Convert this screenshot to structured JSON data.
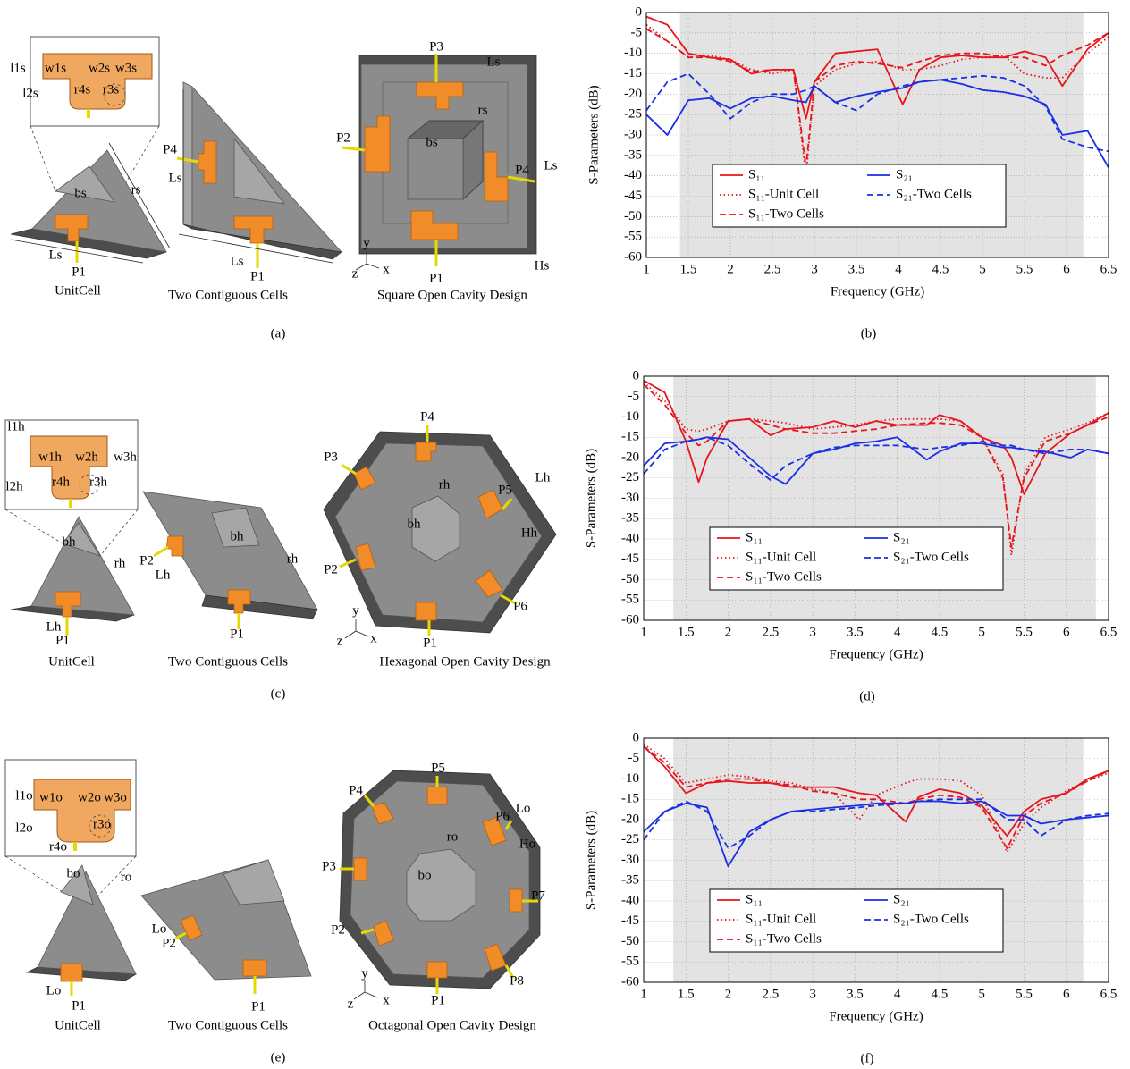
{
  "chart_data": [
    {
      "type": "line",
      "panel_label": "(b)",
      "xlabel": "Frequency (GHz)",
      "ylabel": "S-Parameters (dB)",
      "xlim": [
        1,
        6.5
      ],
      "ylim": [
        -60,
        0
      ],
      "xticks": [
        1,
        1.5,
        2,
        2.5,
        3,
        3.5,
        4,
        4.5,
        5,
        5.5,
        6,
        6.5
      ],
      "yticks": [
        0,
        -5,
        -10,
        -15,
        -20,
        -25,
        -30,
        -35,
        -40,
        -45,
        -50,
        -55,
        -60
      ],
      "grid": true,
      "legend_loc": "lower center",
      "shade": [
        1.4,
        6.2
      ],
      "shade_color": "#e3e3e3",
      "x": [
        1,
        1.25,
        1.5,
        1.75,
        2,
        2.25,
        2.5,
        2.75,
        2.9,
        3,
        3.25,
        3.5,
        3.75,
        4.05,
        4.25,
        4.5,
        4.75,
        5,
        5.25,
        5.5,
        5.75,
        5.95,
        6.25,
        6.5
      ],
      "series": [
        {
          "name": "S₁₁",
          "color": "#e8141b",
          "style": "solid",
          "values": [
            -1,
            -3,
            -10,
            -11,
            -11.5,
            -15,
            -14,
            -14,
            -26,
            -17,
            -10,
            -9.5,
            -9,
            -22.5,
            -14,
            -11,
            -10.5,
            -11,
            -11,
            -9.5,
            -11,
            -18,
            -9,
            -5
          ]
        },
        {
          "name": "S₁₁-Unit Cell",
          "color": "#e8141b",
          "style": "dotted",
          "values": [
            -3,
            -7,
            -11,
            -10.5,
            -11.5,
            -14,
            -15,
            -14,
            -40,
            -18,
            -14,
            -12.5,
            -12,
            -14,
            -14,
            -13,
            -11.5,
            -11,
            -10.5,
            -15,
            -16,
            -16,
            -10,
            -6
          ]
        },
        {
          "name": "S₁₁-Two Cells",
          "color": "#e8141b",
          "style": "dashed",
          "values": [
            -4,
            -7,
            -11,
            -11,
            -12,
            -14.5,
            -14,
            -14,
            -38,
            -17,
            -13,
            -12,
            -12.5,
            -13.5,
            -12,
            -10.5,
            -10,
            -10,
            -11,
            -11,
            -13,
            -10.5,
            -8,
            -5
          ]
        },
        {
          "name": "S₂₁",
          "color": "#1a2ee6",
          "style": "solid",
          "values": [
            -25,
            -30,
            -21.5,
            -21,
            -23.5,
            -21,
            -20.5,
            -21.5,
            -22,
            -18,
            -22,
            -20.5,
            -19.5,
            -18.5,
            -17,
            -16.5,
            -17.5,
            -19,
            -19.5,
            -20.5,
            -22.5,
            -30,
            -29,
            -38
          ]
        },
        {
          "name": "S₂₁-Two Cells",
          "color": "#1a2ee6",
          "style": "dashed",
          "values": [
            -24,
            -17,
            -15,
            -20,
            -26,
            -22,
            -20,
            -20,
            -19,
            -18,
            -22,
            -24,
            -20,
            -18,
            -17,
            -16.5,
            -16,
            -15.5,
            -16,
            -18,
            -23,
            -31,
            -33,
            -34
          ]
        }
      ]
    },
    {
      "type": "line",
      "panel_label": "(d)",
      "xlabel": "Frequency (GHz)",
      "ylabel": "S-Parameters (dB)",
      "xlim": [
        1,
        6.5
      ],
      "ylim": [
        -60,
        0
      ],
      "xticks": [
        1,
        1.5,
        2,
        2.5,
        3,
        3.5,
        4,
        4.5,
        5,
        5.5,
        6,
        6.5
      ],
      "yticks": [
        0,
        -5,
        -10,
        -15,
        -20,
        -25,
        -30,
        -35,
        -40,
        -45,
        -50,
        -55,
        -60
      ],
      "grid": true,
      "legend_loc": "lower center",
      "shade": [
        1.35,
        6.35
      ],
      "shade_color": "#e3e3e3",
      "x": [
        1,
        1.25,
        1.5,
        1.65,
        1.75,
        2,
        2.25,
        2.5,
        2.68,
        3,
        3.25,
        3.5,
        3.75,
        4,
        4.35,
        4.5,
        4.75,
        5,
        5.25,
        5.35,
        5.5,
        5.75,
        6.05,
        6.25,
        6.5
      ],
      "series": [
        {
          "name": "S₁₁",
          "color": "#e8141b",
          "style": "solid",
          "values": [
            -1,
            -4,
            -16,
            -26,
            -20,
            -11,
            -10.5,
            -14.5,
            -13,
            -12.5,
            -11,
            -12.5,
            -11,
            -12,
            -12,
            -9.5,
            -11,
            -15,
            -17,
            -20,
            -29,
            -19,
            -14,
            -12,
            -9
          ]
        },
        {
          "name": "S₁₁-Unit Cell",
          "color": "#e8141b",
          "style": "dotted",
          "values": [
            -1.5,
            -6,
            -13,
            -13.5,
            -13,
            -11,
            -10.5,
            -11,
            -11.5,
            -13,
            -12.5,
            -12,
            -11,
            -10.5,
            -10.5,
            -10.5,
            -11,
            -15,
            -24,
            -44,
            -24,
            -15,
            -13,
            -11.5,
            -9
          ]
        },
        {
          "name": "S₁₁-Two Cells",
          "color": "#e8141b",
          "style": "dashed",
          "values": [
            -2,
            -7,
            -14,
            -17,
            -16,
            -11,
            -10.5,
            -12,
            -13,
            -14,
            -14,
            -13.5,
            -13,
            -12,
            -11.5,
            -11.5,
            -12,
            -15,
            -25,
            -42,
            -25,
            -16,
            -14,
            -12,
            -10
          ]
        },
        {
          "name": "S₂₁",
          "color": "#1a2ee6",
          "style": "solid",
          "values": [
            -22,
            -16.5,
            -16,
            -15.5,
            -15,
            -15.5,
            -20,
            -24.5,
            -26.5,
            -19,
            -18,
            -16.5,
            -16,
            -15,
            -20.5,
            -18.5,
            -16.5,
            -16.5,
            -17.5,
            -17.5,
            -18,
            -18.5,
            -20,
            -18,
            -19
          ]
        },
        {
          "name": "S₂₁-Two Cells",
          "color": "#1a2ee6",
          "style": "dashed",
          "values": [
            -24,
            -18,
            -16,
            -15.5,
            -15,
            -17,
            -21.5,
            -25.5,
            -22,
            -19,
            -17.5,
            -17,
            -17,
            -17,
            -18,
            -17.5,
            -17,
            -16,
            -17,
            -17,
            -18,
            -19,
            -18,
            -18,
            -19
          ]
        }
      ]
    },
    {
      "type": "line",
      "panel_label": "(f)",
      "xlabel": "Frequency (GHz)",
      "ylabel": "S-Parameters (dB)",
      "xlim": [
        1,
        6.5
      ],
      "ylim": [
        -60,
        0
      ],
      "xticks": [
        1,
        1.5,
        2,
        2.5,
        3,
        3.5,
        4,
        4.5,
        5,
        5.5,
        6,
        6.5
      ],
      "yticks": [
        0,
        -5,
        -10,
        -15,
        -20,
        -25,
        -30,
        -35,
        -40,
        -45,
        -50,
        -55,
        -60
      ],
      "grid": true,
      "legend_loc": "lower center",
      "shade": [
        1.35,
        6.2
      ],
      "shade_color": "#e3e3e3",
      "x": [
        1,
        1.25,
        1.5,
        1.75,
        2,
        2.25,
        2.5,
        2.75,
        3,
        3.25,
        3.55,
        3.75,
        4.1,
        4.25,
        4.5,
        4.75,
        5,
        5.3,
        5.5,
        5.7,
        6,
        6.25,
        6.5
      ],
      "series": [
        {
          "name": "S₁₁",
          "color": "#e8141b",
          "style": "solid",
          "values": [
            -2,
            -7,
            -13.5,
            -11,
            -10.5,
            -11,
            -11,
            -12,
            -12,
            -12,
            -13.5,
            -14,
            -20.5,
            -14.5,
            -12.5,
            -13.5,
            -16.5,
            -24,
            -18,
            -15,
            -13.5,
            -10,
            -8
          ]
        },
        {
          "name": "S₁₁-Unit Cell",
          "color": "#e8141b",
          "style": "dotted",
          "values": [
            -1.5,
            -5,
            -11,
            -10,
            -9,
            -9.5,
            -10.5,
            -11,
            -12.5,
            -13.5,
            -20,
            -14,
            -11,
            -10,
            -10,
            -10.5,
            -14,
            -28,
            -21,
            -17,
            -13,
            -10.5,
            -8.5
          ]
        },
        {
          "name": "S₁₁-Two Cells",
          "color": "#e8141b",
          "style": "dashed",
          "values": [
            -2,
            -6,
            -12,
            -11,
            -10,
            -10,
            -11,
            -11.5,
            -13,
            -13.5,
            -15,
            -15,
            -16,
            -15,
            -14,
            -14.5,
            -17,
            -27,
            -19,
            -16,
            -13.5,
            -10.5,
            -8
          ]
        },
        {
          "name": "S₂₁",
          "color": "#1a2ee6",
          "style": "solid",
          "values": [
            -23,
            -18,
            -16,
            -17,
            -31.5,
            -23,
            -20,
            -18,
            -17.5,
            -17,
            -16.5,
            -16,
            -16,
            -15.5,
            -15.5,
            -16,
            -15.5,
            -19,
            -19,
            -21,
            -20,
            -19.5,
            -19
          ]
        },
        {
          "name": "S₂₁-Two Cells",
          "color": "#1a2ee6",
          "style": "dashed",
          "values": [
            -25,
            -18,
            -15.5,
            -18,
            -27,
            -24,
            -20,
            -18,
            -18,
            -17.5,
            -17,
            -16.5,
            -16,
            -15.5,
            -15,
            -15,
            -15,
            -20,
            -20,
            -24,
            -20,
            -19,
            -18.5
          ]
        }
      ]
    }
  ],
  "figures": [
    {
      "panel_label": "(a)",
      "captions": [
        "UnitCell",
        "Two Contiguous Cells",
        "Square Open Cavity Design"
      ],
      "labels": [
        "l1s",
        "w1s",
        "w2s",
        "w3s",
        "l2s",
        "r4s",
        "r3s",
        "bs",
        "rs",
        "Ls",
        "P1",
        "P4",
        "Ls",
        "Ls",
        "P1",
        "P3",
        "Ls",
        "rs",
        "P2",
        "bs",
        "P4",
        "Ls",
        "P1",
        "Hs",
        "y",
        "z",
        "x"
      ]
    },
    {
      "panel_label": "(c)",
      "captions": [
        "UnitCell",
        "Two Contiguous Cells",
        "Hexagonal Open Cavity Design"
      ],
      "labels": [
        "l1h",
        "w1h",
        "w2h",
        "w3h",
        "l2h",
        "r4h",
        "r3h",
        "bh",
        "rh",
        "Lh",
        "P1",
        "P2",
        "Lh",
        "bh",
        "rh",
        "P1",
        "P4",
        "Lh",
        "P3",
        "rh",
        "P5",
        "bh",
        "Hh",
        "P2",
        "P6",
        "P1",
        "y",
        "z",
        "x"
      ]
    },
    {
      "panel_label": "(e)",
      "captions": [
        "UnitCell",
        "Two Contiguous Cells",
        "Octagonal Open Cavity Design"
      ],
      "labels": [
        "l1o",
        "w1o",
        "w2o",
        "w3o",
        "l2o",
        "r3o",
        "r4o",
        "bo",
        "ro",
        "Lo",
        "P1",
        "Lo",
        "P2",
        "P1",
        "P5",
        "Lo",
        "P4",
        "P6",
        "Ho",
        "ro",
        "P3",
        "bo",
        "P7",
        "P2",
        "P8",
        "P1",
        "y",
        "z",
        "x"
      ]
    }
  ]
}
